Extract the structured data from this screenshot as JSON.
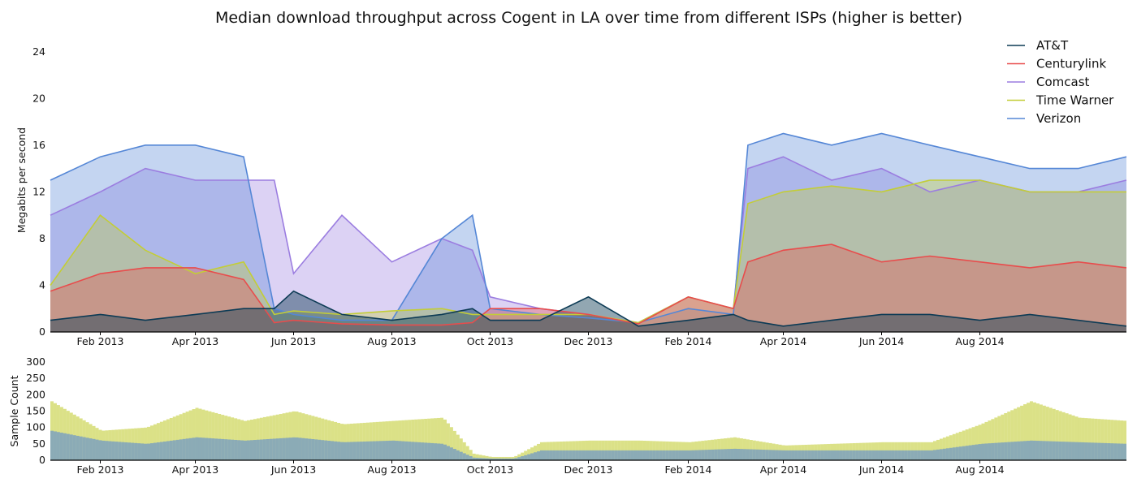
{
  "chart_data": [
    {
      "type": "area",
      "title": "Median download throughput across Cogent in LA over time from different ISPs (higher is better)",
      "xlabel": "",
      "ylabel": "Megabits per second",
      "x_tick_labels": [
        "Feb 2013",
        "Apr 2013",
        "Jun 2013",
        "Aug 2013",
        "Oct 2013",
        "Dec 2013",
        "Feb 2014",
        "Apr 2014",
        "Jun 2014",
        "Aug 2014"
      ],
      "y_ticks": [
        0,
        4,
        8,
        12,
        16,
        20,
        24
      ],
      "ylim": [
        0,
        26
      ],
      "xlim": [
        "2013-01-01",
        "2014-10-31"
      ],
      "grid": true,
      "legend_position": "top-right",
      "x": [
        "2013-01-01",
        "2013-02-01",
        "2013-03-01",
        "2013-04-01",
        "2013-05-01",
        "2013-05-20",
        "2013-06-01",
        "2013-07-01",
        "2013-08-01",
        "2013-09-01",
        "2013-09-20",
        "2013-10-01",
        "2013-11-01",
        "2013-12-01",
        "2014-01-01",
        "2014-02-01",
        "2014-03-01",
        "2014-03-10",
        "2014-04-01",
        "2014-05-01",
        "2014-06-01",
        "2014-07-01",
        "2014-08-01",
        "2014-09-01",
        "2014-10-01",
        "2014-10-31"
      ],
      "series": [
        {
          "name": "AT&T",
          "color": "#0d3b55",
          "values": [
            1.0,
            1.5,
            1.0,
            1.5,
            2.0,
            2.0,
            3.5,
            1.5,
            1.0,
            1.5,
            2.0,
            1.0,
            1.0,
            3.0,
            0.5,
            1.0,
            1.5,
            1.0,
            0.5,
            1.0,
            1.5,
            1.5,
            1.0,
            1.5,
            1.0,
            0.5
          ]
        },
        {
          "name": "Centurylink",
          "color": "#e84c4c",
          "values": [
            3.5,
            5.0,
            5.5,
            5.5,
            4.5,
            0.8,
            1.0,
            0.7,
            0.6,
            0.6,
            0.8,
            2.0,
            2.0,
            1.5,
            0.7,
            3.0,
            2.0,
            6.0,
            7.0,
            7.5,
            6.0,
            6.5,
            6.0,
            5.5,
            6.0,
            5.5
          ]
        },
        {
          "name": "Comcast",
          "color": "#9b7de0",
          "values": [
            10.0,
            12.0,
            14.0,
            13.0,
            13.0,
            13.0,
            5.0,
            10.0,
            6.0,
            8.0,
            7.0,
            3.0,
            2.0,
            1.5,
            0.8,
            3.0,
            2.0,
            14.0,
            15.0,
            13.0,
            14.0,
            12.0,
            13.0,
            12.0,
            12.0,
            13.0
          ]
        },
        {
          "name": "Time Warner",
          "color": "#c3cd37",
          "values": [
            4.0,
            10.0,
            7.0,
            5.0,
            6.0,
            1.5,
            1.8,
            1.5,
            1.8,
            2.0,
            1.5,
            1.5,
            1.5,
            1.5,
            0.8,
            3.0,
            2.0,
            11.0,
            12.0,
            12.5,
            12.0,
            13.0,
            13.0,
            12.0,
            12.0,
            12.0
          ]
        },
        {
          "name": "Verizon",
          "color": "#5587d6",
          "values": [
            13.0,
            15.0,
            16.0,
            16.0,
            15.0,
            2.0,
            1.5,
            1.0,
            1.0,
            8.0,
            10.0,
            2.0,
            1.5,
            1.2,
            0.8,
            2.0,
            1.5,
            16.0,
            17.0,
            16.0,
            17.0,
            16.0,
            15.0,
            14.0,
            14.0,
            15.0
          ]
        }
      ]
    },
    {
      "type": "bar",
      "title": "",
      "xlabel": "",
      "ylabel": "Sample Count",
      "x_tick_labels": [
        "Feb 2013",
        "Apr 2013",
        "Jun 2013",
        "Aug 2013",
        "Oct 2013",
        "Dec 2013",
        "Feb 2014",
        "Apr 2014",
        "Jun 2014",
        "Aug 2014"
      ],
      "y_ticks": [
        0,
        50,
        100,
        150,
        200,
        250,
        300
      ],
      "ylim": [
        0,
        300
      ],
      "x": [
        "2013-01-01",
        "2013-02-01",
        "2013-03-01",
        "2013-04-01",
        "2013-05-01",
        "2013-06-01",
        "2013-07-01",
        "2013-08-01",
        "2013-09-01",
        "2013-09-20",
        "2013-10-01",
        "2013-10-15",
        "2013-11-01",
        "2013-12-01",
        "2014-01-01",
        "2014-02-01",
        "2014-03-01",
        "2014-04-01",
        "2014-05-01",
        "2014-06-01",
        "2014-07-01",
        "2014-08-01",
        "2014-09-01",
        "2014-10-01",
        "2014-10-31"
      ],
      "series": [
        {
          "name": "Time Warner",
          "color": "#c3cd37",
          "values": [
            180,
            90,
            100,
            160,
            120,
            150,
            110,
            120,
            130,
            20,
            10,
            10,
            55,
            60,
            60,
            55,
            70,
            45,
            50,
            55,
            55,
            110,
            180,
            130,
            120
          ]
        },
        {
          "name": "Verizon",
          "color": "#5587d6",
          "values": [
            90,
            60,
            50,
            70,
            60,
            70,
            55,
            60,
            50,
            8,
            5,
            5,
            30,
            30,
            30,
            30,
            35,
            30,
            30,
            30,
            30,
            50,
            60,
            55,
            50
          ]
        }
      ]
    }
  ]
}
